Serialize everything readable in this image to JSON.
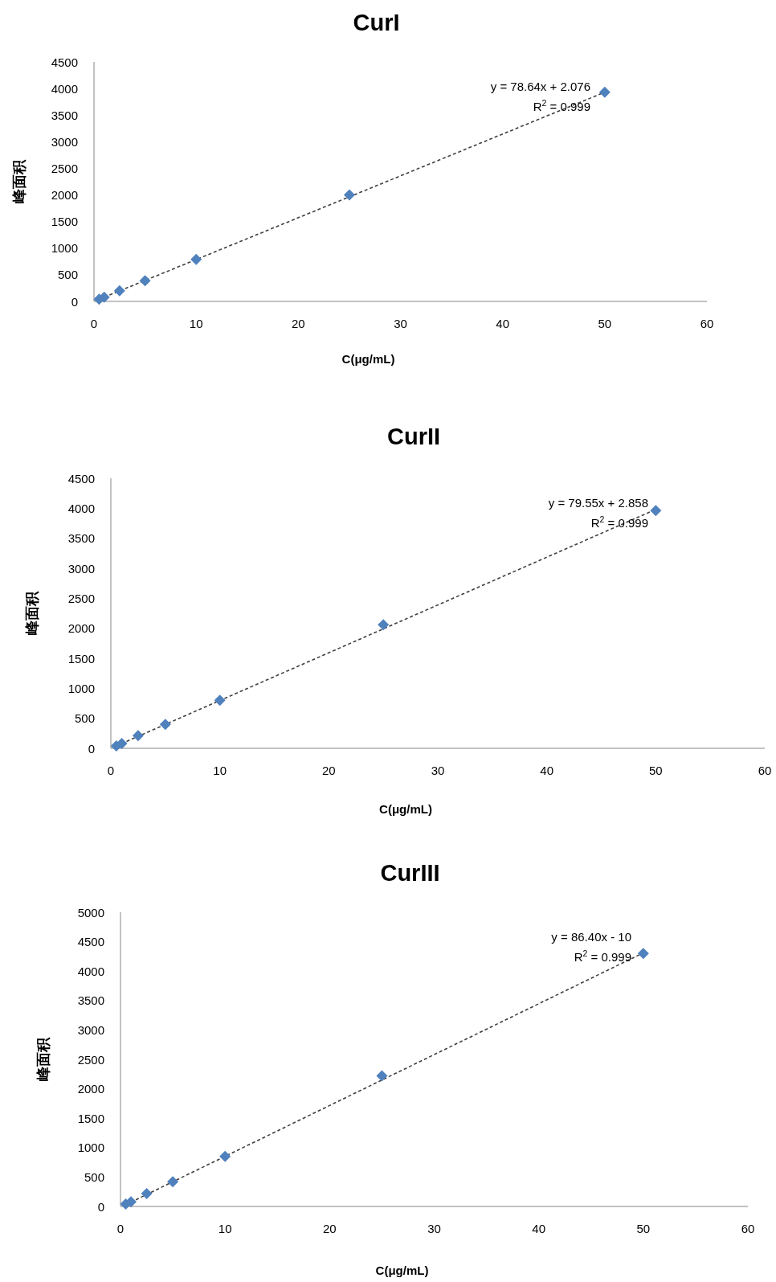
{
  "chart_data": [
    {
      "type": "scatter",
      "title": "CurI",
      "xlabel": "C(μg/mL)",
      "ylabel": "峰面积",
      "xlim": [
        0,
        60
      ],
      "xticks": [
        0,
        10,
        20,
        30,
        40,
        50,
        60
      ],
      "ylim": [
        0,
        4500
      ],
      "yticks": [
        0,
        500,
        1000,
        1500,
        2000,
        2500,
        3000,
        3500,
        4000,
        4500
      ],
      "annotations": [
        "y = 78.64x + 2.076",
        "R$^{2}$ = 0.999"
      ],
      "series": [
        {
          "color": "#4f81bd",
          "marker": "diamond",
          "x": [
            0.5,
            1,
            2.5,
            5,
            10,
            25,
            50
          ],
          "values": [
            40,
            80,
            200,
            390,
            790,
            2000,
            3930
          ]
        },
        {
          "type": "line",
          "color": "#404040",
          "marker": "none",
          "line_style": "dashed",
          "x": [
            0.5,
            50
          ],
          "values": [
            40,
            3930
          ]
        }
      ]
    },
    {
      "type": "scatter",
      "title": "CurII",
      "xlabel": "C(μg/mL)",
      "ylabel": "峰面积",
      "xlim": [
        0,
        60
      ],
      "xticks": [
        0,
        10,
        20,
        30,
        40,
        50,
        60
      ],
      "ylim": [
        0,
        4500
      ],
      "yticks": [
        0,
        500,
        1000,
        1500,
        2000,
        2500,
        3000,
        3500,
        4000,
        4500
      ],
      "annotations": [
        "y = 79.55x + 2.858",
        "R$^{2}$ = 0.999"
      ],
      "series": [
        {
          "color": "#4f81bd",
          "marker": "diamond",
          "x": [
            0.5,
            1,
            2.5,
            5,
            10,
            25,
            50
          ],
          "values": [
            40,
            80,
            210,
            400,
            800,
            2060,
            3960
          ]
        },
        {
          "type": "line",
          "color": "#404040",
          "marker": "none",
          "line_style": "dashed",
          "x": [
            0.5,
            50
          ],
          "values": [
            40,
            3980
          ]
        }
      ]
    },
    {
      "type": "scatter",
      "title": "CurIII",
      "xlabel": "C(μg/mL)",
      "ylabel": "峰面积",
      "xlim": [
        0,
        60
      ],
      "xticks": [
        0,
        10,
        20,
        30,
        40,
        50,
        60
      ],
      "ylim": [
        0,
        5000
      ],
      "yticks": [
        0,
        500,
        1000,
        1500,
        2000,
        2500,
        3000,
        3500,
        4000,
        4500,
        5000
      ],
      "annotations": [
        "y = 86.40x - 10",
        "R$^{2}$ = 0.999"
      ],
      "series": [
        {
          "color": "#4f81bd",
          "marker": "diamond",
          "x": [
            0.5,
            1,
            2.5,
            5,
            10,
            25,
            50
          ],
          "values": [
            40,
            80,
            220,
            420,
            850,
            2220,
            4300
          ]
        },
        {
          "type": "line",
          "color": "#404040",
          "marker": "none",
          "line_style": "dashed",
          "x": [
            0.5,
            50
          ],
          "values": [
            30,
            4310
          ]
        }
      ]
    }
  ]
}
